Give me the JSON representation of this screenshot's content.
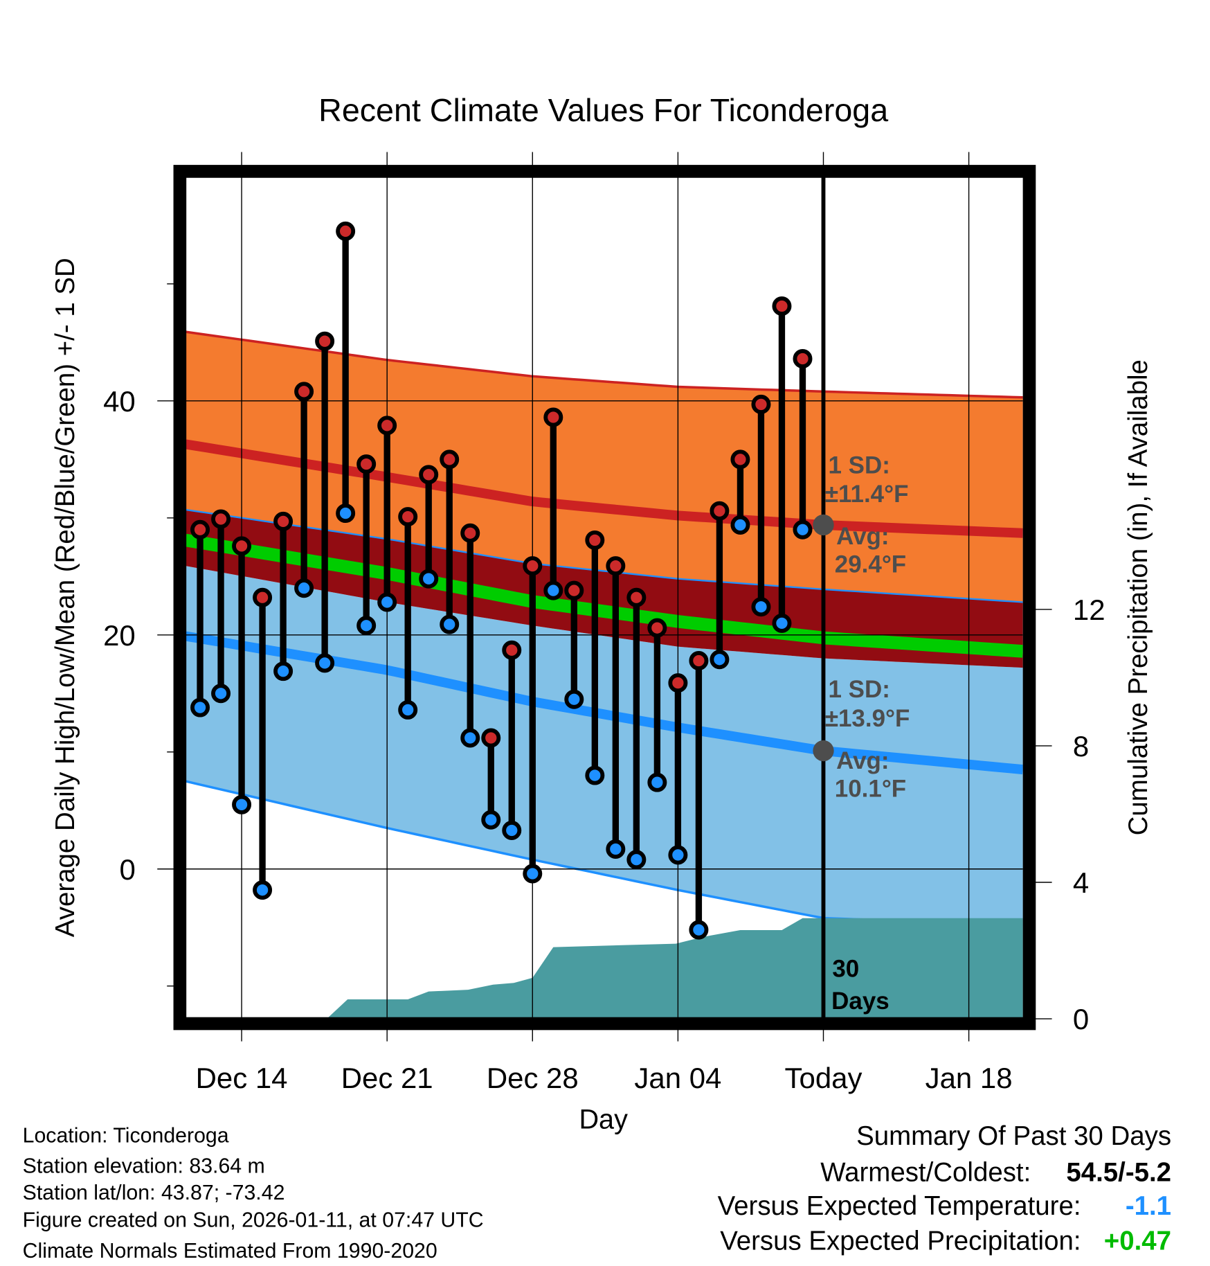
{
  "chart_data": {
    "type": "line",
    "title": "Recent Climate Values For Ticonderoga",
    "xlabel": "Day",
    "ylabel": "Average Daily High/Low/Mean (Red/Blue/Green) +/- 1 SD",
    "y2label": "Cumulative Precipitation (in), If Available",
    "x_unit": "days since Dec 14",
    "xlim": [
      -2.7,
      37.6
    ],
    "ylim": [
      -12.8,
      59.2
    ],
    "y2lim": [
      0,
      24.7
    ],
    "x_ticks": [
      {
        "day": 0,
        "label": "Dec 14"
      },
      {
        "day": 7,
        "label": "Dec 21"
      },
      {
        "day": 14,
        "label": "Dec 28"
      },
      {
        "day": 21,
        "label": "Jan 04"
      },
      {
        "day": 28,
        "label": "Today"
      },
      {
        "day": 35,
        "label": "Jan 18"
      }
    ],
    "y_ticks": [
      {
        "v": 0,
        "label": "0"
      },
      {
        "v": 20,
        "label": "20"
      },
      {
        "v": 40,
        "label": "40"
      }
    ],
    "y_minor_ticks": [
      -10,
      10,
      30,
      50
    ],
    "y2_ticks": [
      {
        "v": 0,
        "label": "0"
      },
      {
        "v": 4,
        "label": "4"
      },
      {
        "v": 8,
        "label": "8"
      },
      {
        "v": 12,
        "label": "12"
      }
    ],
    "grid": true,
    "today_day": 28,
    "observations": {
      "days": [
        -2,
        -1,
        0,
        1,
        2,
        3,
        4,
        5,
        6,
        7,
        8,
        9,
        10,
        11,
        12,
        13,
        14,
        15,
        16,
        17,
        18,
        19,
        20,
        21,
        22,
        23,
        24,
        25,
        26,
        27
      ],
      "high": [
        29.0,
        29.9,
        27.6,
        23.2,
        29.7,
        40.8,
        45.1,
        54.5,
        34.6,
        37.9,
        30.1,
        33.7,
        35.0,
        28.7,
        11.2,
        18.7,
        25.9,
        38.6,
        23.8,
        28.1,
        25.9,
        23.2,
        20.6,
        15.9,
        17.8,
        30.6,
        35.0,
        39.7,
        48.1,
        43.6
      ],
      "low": [
        13.8,
        15.0,
        5.5,
        -1.8,
        16.9,
        24.0,
        17.6,
        30.4,
        20.8,
        22.8,
        13.6,
        24.8,
        20.9,
        11.2,
        4.2,
        3.3,
        -0.4,
        23.8,
        14.5,
        8.0,
        1.7,
        0.8,
        7.4,
        1.2,
        -5.2,
        17.9,
        29.4,
        22.4,
        21.0,
        29.0
      ]
    },
    "normals": {
      "days": [
        -2.7,
        7,
        14,
        21,
        28,
        37.6
      ],
      "high_avg": [
        36.3,
        33.5,
        31.4,
        30.2,
        29.4,
        28.7
      ],
      "high_upper": [
        45.9,
        43.5,
        42.1,
        41.2,
        40.8,
        40.3
      ],
      "high_lower": [
        30.7,
        28.2,
        26.1,
        24.8,
        23.9,
        22.8
      ],
      "low_avg": [
        19.9,
        17.0,
        14.3,
        12.1,
        10.1,
        8.5
      ],
      "low_upper": [
        25.9,
        22.8,
        20.8,
        19.0,
        18.0,
        17.2
      ],
      "low_lower": [
        7.5,
        3.5,
        0.8,
        -1.8,
        -4.2,
        -4.8
      ]
    },
    "precip_cumulative": {
      "days": [
        -2.7,
        4.1,
        5.1,
        8.0,
        9.0,
        10.9,
        12.1,
        13.1,
        14.0,
        15.0,
        17.9,
        20.9,
        22.2,
        24.0,
        26.0,
        27.0,
        37.6
      ],
      "values": [
        0,
        0,
        0.57,
        0.57,
        0.8,
        0.85,
        1.0,
        1.05,
        1.2,
        2.1,
        2.15,
        2.2,
        2.4,
        2.6,
        2.6,
        2.95,
        2.95
      ]
    },
    "annotations": {
      "high_sd_line1": "1 SD:",
      "high_sd_line2": "±11.4°F",
      "high_avg_line1": "Avg:",
      "high_avg_line2": "29.4°F",
      "low_sd_line1": "1 SD:",
      "low_sd_line2": "±13.9°F",
      "low_avg_line1": "Avg:",
      "low_avg_line2": "10.1°F",
      "precip_line1": "30",
      "precip_line2": "Days"
    },
    "colors": {
      "high_band": "#f47b2f",
      "overlap": "#920c12",
      "mean": "#00cc00",
      "low_band": "#82c1e7",
      "low_line": "#1e90ff",
      "high_line": "#cc2222",
      "precip": "#4a9ca0"
    }
  },
  "footer": {
    "location": "Location: Ticonderoga",
    "elevation": "Station elevation: 83.64 m",
    "latlon": "Station lat/lon: 43.87; -73.42",
    "created": "Figure created on Sun, 2026-01-11, at 07:47 UTC",
    "normals": "Climate Normals Estimated From 1990-2020"
  },
  "summary": {
    "title": "Summary Of Past 30 Days",
    "warmest_label": "Warmest/Coldest:",
    "warmest_value": "54.5/-5.2",
    "temp_label": "Versus Expected Temperature:",
    "temp_value": "-1.1",
    "precip_label": "Versus Expected Precipitation:",
    "precip_value": "+0.47"
  }
}
